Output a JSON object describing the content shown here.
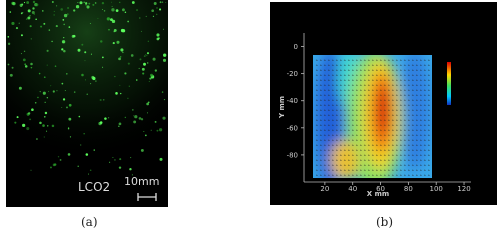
{
  "panels": [
    {
      "caption": "(a)",
      "sample_label": "LCO2",
      "scale_label": "10mm"
    },
    {
      "caption": "(b)",
      "x_label": "X mm",
      "y_label": "Y mm",
      "xlim": [
        5,
        125
      ],
      "ylim": [
        -100,
        10
      ],
      "xticks": [
        20,
        40,
        60,
        80,
        100,
        120
      ],
      "yticks": [
        0,
        -20,
        -40,
        -60,
        -80
      ]
    }
  ]
}
